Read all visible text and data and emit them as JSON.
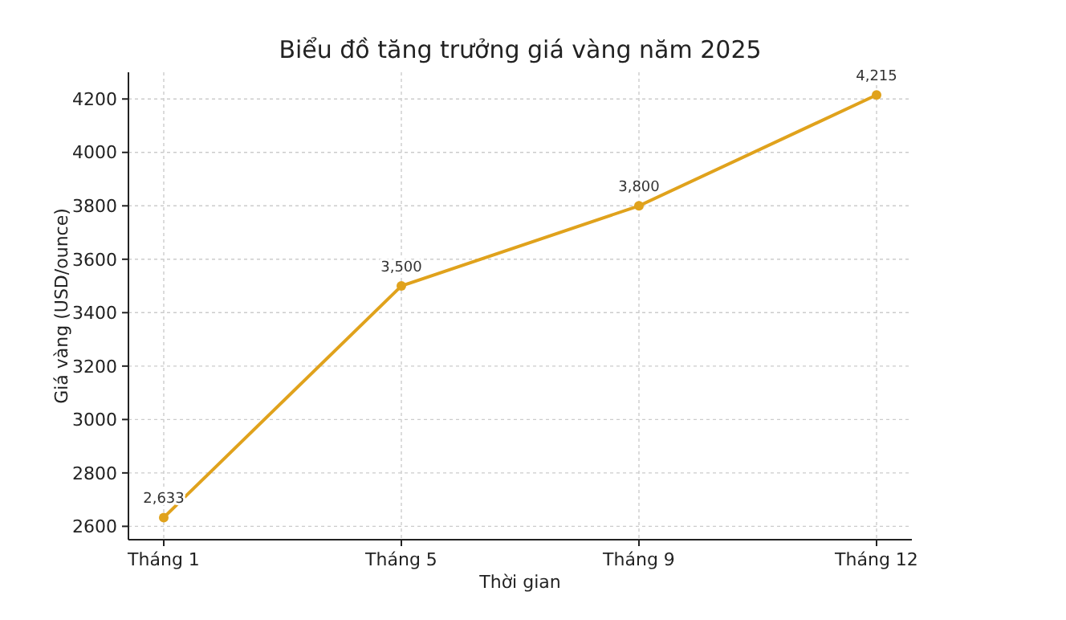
{
  "chart_data": {
    "type": "line",
    "title": "Biểu đồ tăng trưởng giá vàng năm 2025",
    "xlabel": "Thời gian",
    "ylabel": "Giá vàng (USD/ounce)",
    "categories": [
      "Tháng 1",
      "Tháng 5",
      "Tháng 9",
      "Tháng 12"
    ],
    "series": [
      {
        "color": "#e0a21c",
        "values": [
          2633,
          3500,
          3800,
          4215
        ],
        "value_labels": [
          "2,633",
          "3,500",
          "3,800",
          "4,215"
        ]
      }
    ],
    "ylim": [
      2550,
      4300
    ],
    "yticks": [
      2600,
      2800,
      3000,
      3200,
      3400,
      3600,
      3800,
      4000,
      4200
    ],
    "grid": true,
    "marker": "circle",
    "line_style": "solid"
  }
}
